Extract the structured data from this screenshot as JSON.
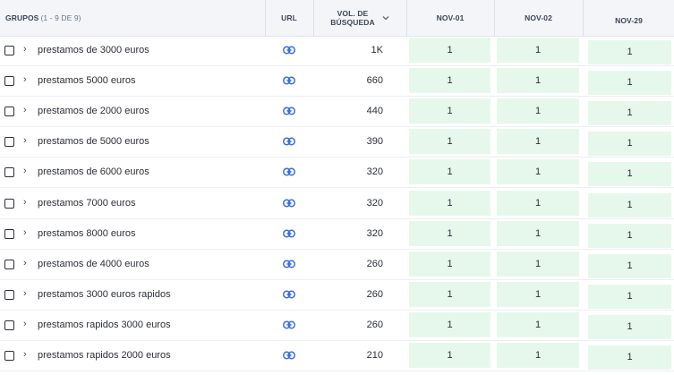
{
  "header": {
    "group_title": "GRUPOS",
    "group_count": "(1 - 9 DE 9)",
    "url_label": "URL",
    "vol_line1": "VOL. DE",
    "vol_line2": "BÚSQUEDA",
    "vol_sort_icon": "chevron-down-icon",
    "dates": [
      "NOV-01",
      "NOV-02",
      "NOV-29"
    ]
  },
  "colors": {
    "header_bg": "#f3f5f9",
    "position_cell_bg": "#e6f8ec",
    "link_icon": "#3b6fe0"
  },
  "rows": [
    {
      "keyword": "prestamos de 3000 euros",
      "volume": "1K",
      "positions": [
        "1",
        "1",
        "1"
      ]
    },
    {
      "keyword": "prestamos 5000 euros",
      "volume": "660",
      "positions": [
        "1",
        "1",
        "1"
      ]
    },
    {
      "keyword": "prestamos de 2000 euros",
      "volume": "440",
      "positions": [
        "1",
        "1",
        "1"
      ]
    },
    {
      "keyword": "prestamos de 5000 euros",
      "volume": "390",
      "positions": [
        "1",
        "1",
        "1"
      ]
    },
    {
      "keyword": "prestamos de 6000 euros",
      "volume": "320",
      "positions": [
        "1",
        "1",
        "1"
      ]
    },
    {
      "keyword": "prestamos 7000 euros",
      "volume": "320",
      "positions": [
        "1",
        "1",
        "1"
      ]
    },
    {
      "keyword": "prestamos 8000 euros",
      "volume": "320",
      "positions": [
        "1",
        "1",
        "1"
      ]
    },
    {
      "keyword": "prestamos de 4000 euros",
      "volume": "260",
      "positions": [
        "1",
        "1",
        "1"
      ]
    },
    {
      "keyword": "prestamos 3000 euros rapidos",
      "volume": "260",
      "positions": [
        "1",
        "1",
        "1"
      ]
    },
    {
      "keyword": "prestamos rapidos 3000 euros",
      "volume": "260",
      "positions": [
        "1",
        "1",
        "1"
      ]
    },
    {
      "keyword": "prestamos rapidos 2000 euros",
      "volume": "210",
      "positions": [
        "1",
        "1",
        "1"
      ]
    }
  ]
}
